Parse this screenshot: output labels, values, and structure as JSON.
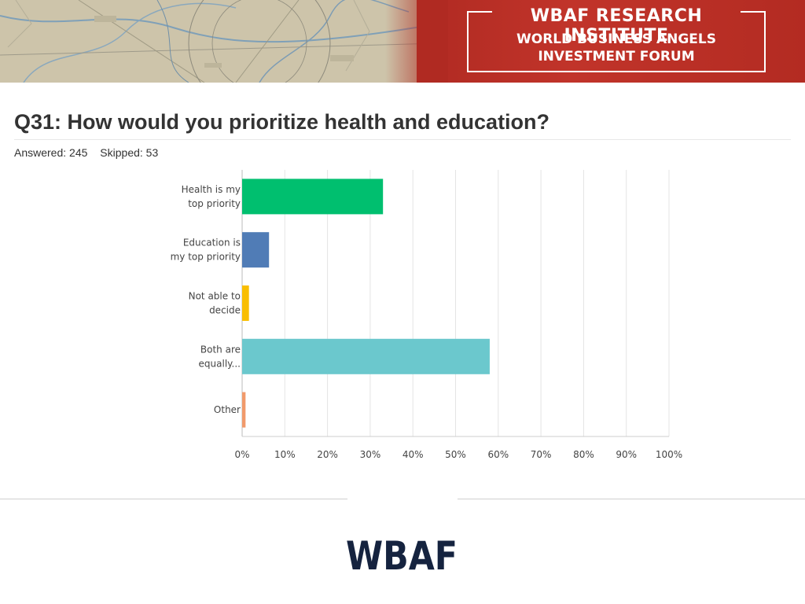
{
  "banner": {
    "institute": "WBAF RESEARCH INSTITUTE",
    "forum_line1": "WORLD BUSINESS ANGELS",
    "forum_line2": "INVESTMENT FORUM"
  },
  "question": {
    "title": "Q31: How would you prioritize health and education?",
    "answered": "Answered: 245",
    "skipped": "Skipped: 53"
  },
  "chart_data": {
    "type": "bar",
    "orientation": "horizontal",
    "categories": [
      [
        "Health is my",
        "top priority"
      ],
      [
        "Education is",
        "my top priority"
      ],
      [
        "Not able to",
        "decide"
      ],
      [
        "Both are",
        "equally..."
      ],
      [
        "Other"
      ]
    ],
    "values": [
      33,
      6.3,
      1.6,
      58,
      0.8
    ],
    "colors": [
      "#00bf6f",
      "#507cb6",
      "#f9be00",
      "#6bc8cd",
      "#f19a6b"
    ],
    "xlim": [
      0,
      100
    ],
    "xticks": [
      "0%",
      "10%",
      "20%",
      "30%",
      "40%",
      "50%",
      "60%",
      "70%",
      "80%",
      "90%",
      "100%"
    ],
    "grid": true
  },
  "footer": {
    "logo_text": "WBAF"
  }
}
